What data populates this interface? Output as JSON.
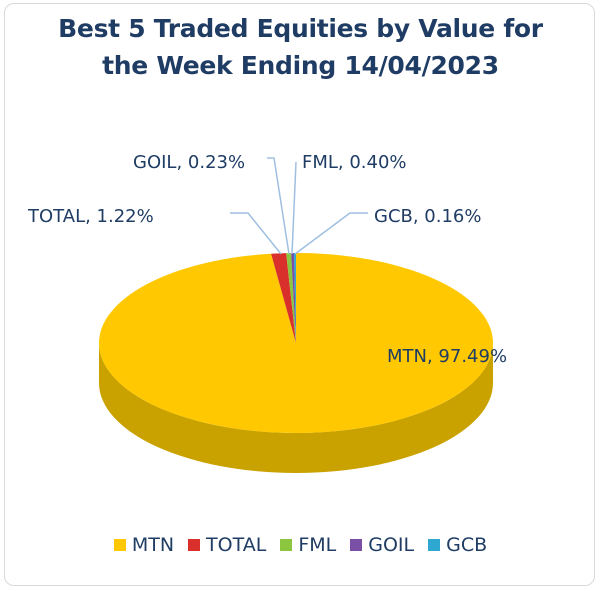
{
  "chart_data": {
    "type": "pie",
    "title_lines": [
      "Best 5 Traded Equities by Value for",
      "the Week Ending 14/04/2023"
    ],
    "slices": [
      {
        "name": "MTN",
        "value": 97.49,
        "label": "MTN, 97.49%",
        "color": "#ffc800",
        "side_color": "#c9a200"
      },
      {
        "name": "TOTAL",
        "value": 1.22,
        "label": "TOTAL, 1.22%",
        "color": "#d9302b",
        "side_color": "#a52420"
      },
      {
        "name": "FML",
        "value": 0.4,
        "label": "FML, 0.40%",
        "color": "#8cc63f",
        "side_color": "#6a9a2f"
      },
      {
        "name": "GOIL",
        "value": 0.23,
        "label": "GOIL, 0.23%",
        "color": "#7a4fa6",
        "side_color": "#5a3a7c"
      },
      {
        "name": "GCB",
        "value": 0.16,
        "label": "GCB, 0.16%",
        "color": "#2ea8d0",
        "side_color": "#1f7c9c"
      }
    ],
    "legend_position": "bottom",
    "style": "3d"
  }
}
